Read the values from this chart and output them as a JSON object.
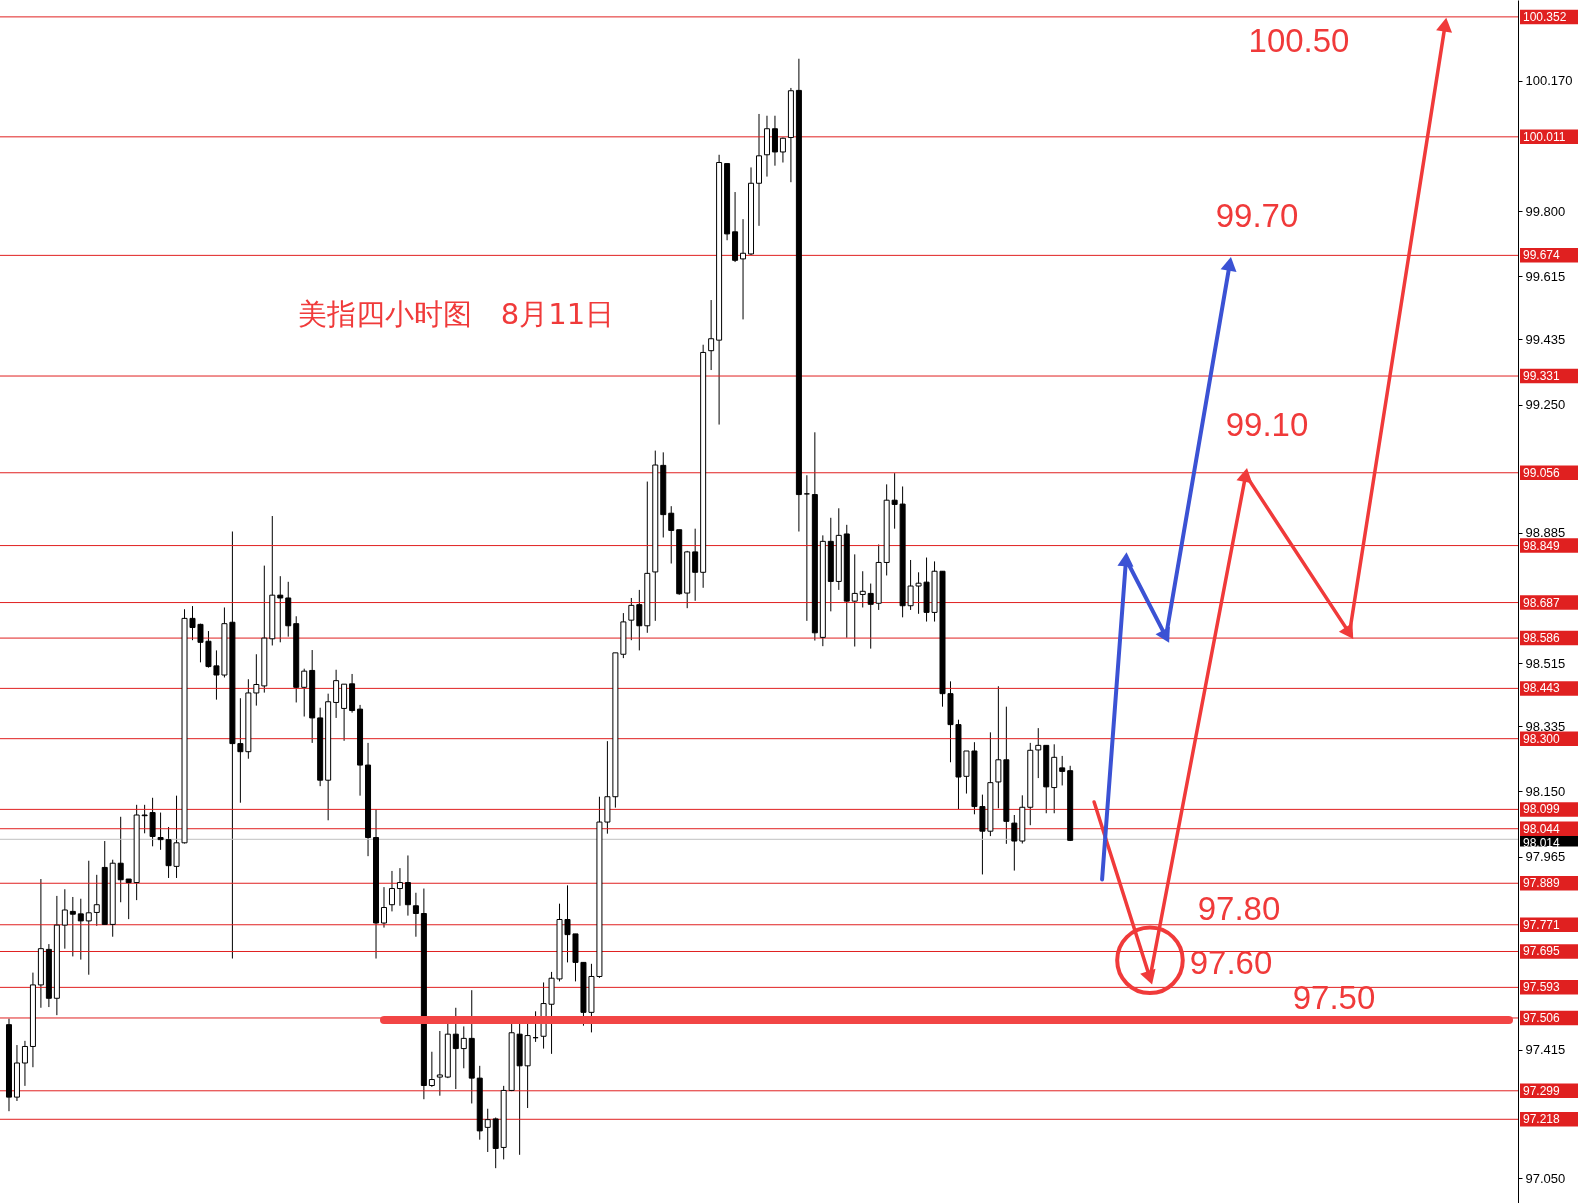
{
  "chart_data": {
    "type": "candlestick",
    "title": "美指四小时图　8月11日",
    "categories": [
      null,
      null,
      null,
      null,
      null,
      null,
      null,
      null,
      null,
      null,
      null,
      null,
      null,
      null,
      null,
      null,
      null,
      null,
      null,
      null,
      null,
      null,
      null,
      null,
      null,
      null,
      null,
      null,
      null,
      null,
      null,
      null,
      null,
      null,
      null,
      null,
      null,
      null,
      null,
      null,
      null,
      null,
      null,
      null,
      null,
      null,
      null,
      null,
      null,
      null,
      null,
      null,
      null,
      null,
      null,
      null,
      null,
      null,
      null,
      null,
      null,
      null,
      null,
      null,
      null,
      null,
      null,
      null,
      null,
      null,
      null,
      null,
      null,
      null,
      null,
      null,
      null,
      null,
      null,
      null,
      null,
      null,
      null,
      null,
      null,
      null,
      null,
      null,
      null,
      null,
      null,
      null,
      null,
      null,
      null,
      null,
      null,
      null,
      null,
      null,
      null,
      null,
      null,
      null,
      null,
      null,
      null,
      null,
      null,
      null,
      null,
      null,
      null,
      null,
      null,
      null,
      null,
      null,
      null,
      null,
      null,
      null,
      null,
      null,
      null,
      null,
      null,
      null,
      null,
      null,
      null,
      null,
      null,
      null,
      null,
      null,
      null,
      null,
      null,
      null,
      null,
      null,
      null,
      null,
      null,
      null,
      null,
      null,
      null,
      null,
      null,
      null,
      null,
      null,
      null,
      null,
      null,
      null,
      null,
      null,
      null,
      null,
      null,
      null,
      null,
      null,
      null,
      null,
      null,
      null,
      null,
      null,
      null,
      null,
      null,
      null,
      null,
      null,
      null,
      null,
      null,
      null,
      null,
      null,
      null,
      null,
      null,
      null,
      null
    ],
    "ohlc": [
      [
        97.487,
        97.504,
        97.241,
        97.281
      ],
      [
        97.281,
        97.429,
        97.27,
        97.378
      ],
      [
        97.378,
        97.441,
        97.313,
        97.425
      ],
      [
        97.425,
        97.635,
        97.366,
        97.6
      ],
      [
        97.6,
        97.901,
        97.535,
        97.703
      ],
      [
        97.701,
        97.716,
        97.537,
        97.562
      ],
      [
        97.562,
        97.853,
        97.514,
        97.77
      ],
      [
        97.77,
        97.872,
        97.703,
        97.813
      ],
      [
        97.809,
        97.85,
        97.681,
        97.801
      ],
      [
        97.802,
        97.845,
        97.672,
        97.782
      ],
      [
        97.782,
        97.953,
        97.629,
        97.805
      ],
      [
        97.806,
        97.913,
        97.768,
        97.828
      ],
      [
        97.934,
        98.009,
        97.772,
        97.772
      ],
      [
        97.772,
        97.956,
        97.737,
        97.946
      ],
      [
        97.946,
        98.078,
        97.835,
        97.899
      ],
      [
        97.901,
        97.901,
        97.787,
        97.891
      ],
      [
        97.891,
        98.112,
        97.841,
        98.083
      ],
      [
        98.083,
        98.112,
        98.031,
        98.081
      ],
      [
        98.09,
        98.132,
        97.994,
        98.022
      ],
      [
        98.019,
        98.09,
        97.984,
        98.013
      ],
      [
        98.013,
        98.049,
        97.904,
        97.939
      ],
      [
        97.937,
        98.138,
        97.904,
        98.004
      ],
      [
        98.004,
        98.668,
        98.002,
        98.642
      ],
      [
        98.642,
        98.677,
        98.58,
        98.616
      ],
      [
        98.625,
        98.627,
        98.517,
        98.574
      ],
      [
        98.577,
        98.606,
        98.502,
        98.505
      ],
      [
        98.507,
        98.551,
        98.411,
        98.481
      ],
      [
        98.481,
        98.673,
        98.474,
        98.627
      ],
      [
        98.631,
        98.889,
        97.675,
        98.286
      ],
      [
        98.286,
        98.415,
        98.118,
        98.263
      ],
      [
        98.263,
        98.469,
        98.243,
        98.43
      ],
      [
        98.43,
        98.54,
        98.394,
        98.454
      ],
      [
        98.45,
        98.792,
        98.431,
        98.586
      ],
      [
        98.584,
        98.933,
        98.565,
        98.708
      ],
      [
        98.708,
        98.762,
        98.574,
        98.7
      ],
      [
        98.7,
        98.746,
        98.59,
        98.621
      ],
      [
        98.627,
        98.648,
        98.403,
        98.446
      ],
      [
        98.446,
        98.499,
        98.363,
        98.492
      ],
      [
        98.494,
        98.552,
        98.288,
        98.359
      ],
      [
        98.359,
        98.388,
        98.165,
        98.182
      ],
      [
        98.182,
        98.428,
        98.068,
        98.405
      ],
      [
        98.403,
        98.496,
        98.359,
        98.465
      ],
      [
        98.386,
        98.455,
        98.294,
        98.455
      ],
      [
        98.456,
        98.484,
        98.374,
        98.38
      ],
      [
        98.384,
        98.396,
        98.138,
        98.225
      ],
      [
        98.225,
        98.288,
        97.966,
        98.019
      ],
      [
        98.019,
        98.099,
        97.675,
        97.776
      ],
      [
        97.776,
        97.878,
        97.763,
        97.82
      ],
      [
        97.828,
        97.924,
        97.809,
        97.874
      ],
      [
        97.874,
        97.932,
        97.825,
        97.891
      ],
      [
        97.891,
        97.968,
        97.797,
        97.828
      ],
      [
        97.825,
        97.862,
        97.737,
        97.803
      ],
      [
        97.803,
        97.874,
        97.275,
        97.314
      ],
      [
        97.314,
        97.41,
        97.31,
        97.331
      ],
      [
        97.338,
        97.469,
        97.285,
        97.344
      ],
      [
        97.338,
        97.497,
        97.335,
        97.46
      ],
      [
        97.46,
        97.535,
        97.304,
        97.419
      ],
      [
        97.419,
        97.482,
        97.363,
        97.448
      ],
      [
        97.448,
        97.585,
        97.263,
        97.335
      ],
      [
        97.335,
        97.37,
        97.16,
        97.185
      ],
      [
        97.195,
        97.248,
        97.125,
        97.217
      ],
      [
        97.219,
        97.223,
        97.079,
        97.135
      ],
      [
        97.138,
        97.313,
        97.104,
        97.3
      ],
      [
        97.3,
        97.494,
        97.298,
        97.464
      ],
      [
        97.46,
        97.497,
        97.117,
        97.37
      ],
      [
        97.37,
        97.494,
        97.25,
        97.456
      ],
      [
        97.45,
        97.525,
        97.438,
        97.45
      ],
      [
        97.454,
        97.607,
        97.419,
        97.547
      ],
      [
        97.545,
        97.637,
        97.404,
        97.619
      ],
      [
        97.617,
        97.831,
        97.61,
        97.786
      ],
      [
        97.786,
        97.883,
        97.664,
        97.743
      ],
      [
        97.745,
        97.745,
        97.61,
        97.664
      ],
      [
        97.664,
        97.664,
        97.484,
        97.522
      ],
      [
        97.522,
        97.66,
        97.465,
        97.624
      ],
      [
        97.624,
        98.135,
        97.62,
        98.063
      ],
      [
        98.063,
        98.293,
        98.03,
        98.135
      ],
      [
        98.135,
        98.544,
        98.104,
        98.544
      ],
      [
        98.54,
        98.657,
        98.529,
        98.632
      ],
      [
        98.637,
        98.7,
        98.58,
        98.679
      ],
      [
        98.681,
        98.723,
        98.551,
        98.621
      ],
      [
        98.621,
        99.031,
        98.601,
        98.77
      ],
      [
        98.774,
        99.119,
        98.635,
        99.078
      ],
      [
        99.077,
        99.114,
        98.872,
        98.937
      ],
      [
        98.941,
        98.961,
        98.798,
        98.892
      ],
      [
        98.894,
        98.894,
        98.709,
        98.712
      ],
      [
        98.714,
        98.834,
        98.671,
        98.831
      ],
      [
        98.831,
        98.897,
        98.692,
        98.773
      ],
      [
        98.773,
        99.42,
        98.729,
        99.398
      ],
      [
        99.403,
        99.547,
        99.348,
        99.437
      ],
      [
        99.433,
        99.96,
        99.193,
        99.938
      ],
      [
        99.935,
        99.935,
        99.717,
        99.735
      ],
      [
        99.741,
        99.854,
        99.655,
        99.66
      ],
      [
        99.664,
        99.777,
        99.492,
        99.68
      ],
      [
        99.678,
        99.924,
        99.675,
        99.879
      ],
      [
        99.879,
        100.076,
        99.758,
        99.957
      ],
      [
        99.96,
        100.071,
        99.898,
        100.034
      ],
      [
        100.034,
        100.071,
        99.929,
        99.968
      ],
      [
        99.968,
        100.009,
        99.938,
        100.007
      ],
      [
        100.009,
        100.15,
        99.882,
        100.142
      ],
      [
        100.143,
        100.233,
        98.889,
        98.994
      ],
      [
        98.996,
        99.049,
        98.635,
        98.996
      ],
      [
        98.994,
        99.171,
        98.579,
        98.601
      ],
      [
        98.588,
        98.878,
        98.563,
        98.861
      ],
      [
        98.861,
        98.928,
        98.662,
        98.747
      ],
      [
        98.747,
        98.955,
        98.723,
        98.878
      ],
      [
        98.882,
        98.908,
        98.587,
        98.691
      ],
      [
        98.691,
        98.824,
        98.562,
        98.713
      ],
      [
        98.71,
        98.776,
        98.673,
        98.719
      ],
      [
        98.713,
        98.741,
        98.556,
        98.682
      ],
      [
        98.685,
        98.852,
        98.666,
        98.801
      ],
      [
        98.801,
        99.023,
        98.764,
        98.978
      ],
      [
        98.978,
        99.055,
        98.897,
        98.966
      ],
      [
        98.967,
        99.017,
        98.645,
        98.678
      ],
      [
        98.678,
        98.808,
        98.666,
        98.734
      ],
      [
        98.734,
        98.773,
        98.655,
        98.742
      ],
      [
        98.745,
        98.815,
        98.633,
        98.659
      ],
      [
        98.659,
        98.804,
        98.633,
        98.776
      ],
      [
        98.776,
        98.776,
        98.391,
        98.428
      ],
      [
        98.428,
        98.463,
        98.233,
        98.34
      ],
      [
        98.34,
        98.354,
        98.1,
        98.191
      ],
      [
        98.193,
        98.265,
        98.144,
        98.265
      ],
      [
        98.265,
        98.29,
        98.085,
        98.107
      ],
      [
        98.107,
        98.141,
        97.914,
        98.037
      ],
      [
        98.037,
        98.318,
        98.023,
        98.175
      ],
      [
        98.177,
        98.449,
        98.102,
        98.24
      ],
      [
        98.24,
        98.391,
        98.001,
        98.065
      ],
      [
        98.06,
        98.083,
        97.925,
        98.009
      ],
      [
        98.009,
        98.139,
        98.002,
        98.105
      ],
      [
        98.105,
        98.288,
        98.054,
        98.267
      ],
      [
        98.268,
        98.33,
        98.188,
        98.281
      ],
      [
        98.281,
        98.281,
        98.088,
        98.163
      ],
      [
        98.161,
        98.284,
        98.088,
        98.247
      ],
      [
        98.217,
        98.251,
        98.167,
        98.207
      ],
      [
        98.209,
        98.223,
        98.009,
        98.011
      ],
      null,
      null,
      null,
      null,
      null,
      null,
      null,
      null,
      null,
      null,
      null,
      null,
      null,
      null,
      null,
      null,
      null,
      null,
      null,
      null,
      null,
      null,
      null,
      null,
      null,
      null,
      null,
      null,
      null,
      null,
      null,
      null,
      null,
      null,
      null,
      null,
      null,
      null,
      null,
      null,
      null,
      null,
      null,
      null,
      null,
      null,
      null,
      null,
      null,
      null,
      null,
      null,
      null,
      null,
      null
    ],
    "series": [
      {
        "type": "line",
        "color": "#3b52d4",
        "marker": "triangle",
        "values": [
          null,
          null,
          null,
          null,
          null,
          null,
          null,
          null,
          null,
          null,
          null,
          null,
          null,
          null,
          null,
          null,
          null,
          null,
          null,
          null,
          null,
          null,
          null,
          null,
          null,
          null,
          null,
          null,
          null,
          null,
          null,
          null,
          null,
          null,
          null,
          null,
          null,
          null,
          null,
          null,
          null,
          null,
          null,
          null,
          null,
          null,
          null,
          null,
          null,
          null,
          null,
          null,
          null,
          null,
          null,
          null,
          null,
          null,
          null,
          null,
          null,
          null,
          null,
          null,
          null,
          null,
          null,
          null,
          null,
          null,
          null,
          null,
          null,
          null,
          null,
          null,
          null,
          null,
          null,
          null,
          null,
          null,
          null,
          null,
          null,
          null,
          null,
          null,
          null,
          null,
          null,
          null,
          null,
          null,
          null,
          null,
          null,
          null,
          null,
          null,
          null,
          null,
          null,
          null,
          null,
          null,
          null,
          null,
          null,
          null,
          null,
          null,
          null,
          null,
          null,
          null,
          null,
          null,
          null,
          null,
          null,
          null,
          null,
          null,
          null,
          null,
          null,
          null,
          null,
          null,
          null,
          null,
          null,
          null,
          null,
          null,
          null,
          97.9,
          null,
          null,
          98.81,
          null,
          null,
          null,
          null,
          98.59,
          null,
          null,
          null,
          null,
          null,
          null,
          null,
          99.65,
          null,
          null,
          null,
          null,
          null,
          null,
          null,
          null,
          null,
          null,
          null,
          null,
          null,
          null,
          null,
          null,
          null,
          null,
          null,
          null,
          null,
          null,
          null,
          null,
          null,
          null,
          null,
          null,
          null,
          null,
          null,
          null,
          null,
          null,
          null
        ]
      },
      {
        "type": "line",
        "color": "#f03a3a",
        "marker": "triangle",
        "values": [
          null,
          null,
          null,
          null,
          null,
          null,
          null,
          null,
          null,
          null,
          null,
          null,
          null,
          null,
          null,
          null,
          null,
          null,
          null,
          null,
          null,
          null,
          null,
          null,
          null,
          null,
          null,
          null,
          null,
          null,
          null,
          null,
          null,
          null,
          null,
          null,
          null,
          null,
          null,
          null,
          null,
          null,
          null,
          null,
          null,
          null,
          null,
          null,
          null,
          null,
          null,
          null,
          null,
          null,
          null,
          null,
          null,
          null,
          null,
          null,
          null,
          null,
          null,
          null,
          null,
          null,
          null,
          null,
          null,
          null,
          null,
          null,
          null,
          null,
          null,
          null,
          null,
          null,
          null,
          null,
          null,
          null,
          null,
          null,
          null,
          null,
          null,
          null,
          null,
          null,
          null,
          null,
          null,
          null,
          null,
          null,
          null,
          null,
          null,
          null,
          null,
          null,
          null,
          null,
          null,
          null,
          null,
          null,
          null,
          null,
          null,
          null,
          null,
          null,
          null,
          null,
          null,
          null,
          null,
          null,
          null,
          null,
          null,
          null,
          null,
          null,
          null,
          null,
          null,
          null,
          null,
          null,
          null,
          null,
          null,
          null,
          98.12,
          null,
          null,
          null,
          null,
          null,
          null,
          97.62,
          null,
          null,
          null,
          null,
          null,
          null,
          null,
          null,
          null,
          null,
          null,
          99.05,
          null,
          null,
          null,
          null,
          null,
          null,
          null,
          null,
          null,
          null,
          null,
          null,
          98.6,
          null,
          null,
          null,
          null,
          null,
          null,
          null,
          null,
          null,
          null,
          null,
          100.33,
          null,
          null,
          null,
          null,
          null,
          null,
          null,
          null
        ]
      },
      {
        "type": "line",
        "color": "#f24545",
        "values": [
          null,
          null,
          null,
          null,
          null,
          null,
          null,
          null,
          null,
          null,
          null,
          null,
          null,
          null,
          null,
          null,
          null,
          null,
          null,
          null,
          null,
          null,
          null,
          null,
          null,
          null,
          null,
          null,
          null,
          null,
          null,
          null,
          null,
          null,
          null,
          null,
          null,
          null,
          null,
          null,
          null,
          null,
          null,
          null,
          null,
          null,
          null,
          97.5,
          null,
          null,
          null,
          null,
          null,
          null,
          null,
          null,
          null,
          null,
          null,
          null,
          null,
          null,
          null,
          null,
          null,
          null,
          null,
          null,
          null,
          null,
          null,
          null,
          null,
          null,
          null,
          null,
          null,
          null,
          null,
          null,
          null,
          null,
          null,
          null,
          null,
          null,
          null,
          null,
          null,
          null,
          null,
          null,
          null,
          null,
          null,
          null,
          null,
          null,
          null,
          null,
          null,
          null,
          null,
          null,
          null,
          null,
          null,
          null,
          null,
          null,
          null,
          null,
          null,
          null,
          null,
          null,
          null,
          null,
          null,
          null,
          null,
          null,
          null,
          null,
          null,
          null,
          null,
          null,
          null,
          null,
          null,
          null,
          null,
          null,
          null,
          null,
          null,
          null,
          null,
          null,
          null,
          null,
          null,
          null,
          null,
          null,
          null,
          null,
          null,
          null,
          null,
          null,
          null,
          null,
          null,
          null,
          null,
          null,
          null,
          null,
          null,
          null,
          null,
          null,
          null,
          null,
          null,
          null,
          null,
          null,
          null,
          null,
          null,
          null,
          null,
          null,
          null,
          null,
          null,
          null,
          null,
          null,
          null,
          null,
          null,
          null,
          null,
          null,
          97.5
        ]
      },
      {
        "type": "scatter",
        "color": "#f03a3a",
        "marker": "circle",
        "values": [
          null,
          null,
          null,
          null,
          null,
          null,
          null,
          null,
          null,
          null,
          null,
          null,
          null,
          null,
          null,
          null,
          null,
          null,
          null,
          null,
          null,
          null,
          null,
          null,
          null,
          null,
          null,
          null,
          null,
          null,
          null,
          null,
          null,
          null,
          null,
          null,
          null,
          null,
          null,
          null,
          null,
          null,
          null,
          null,
          null,
          null,
          null,
          null,
          null,
          null,
          null,
          null,
          null,
          null,
          null,
          null,
          null,
          null,
          null,
          null,
          null,
          null,
          null,
          null,
          null,
          null,
          null,
          null,
          null,
          null,
          null,
          null,
          null,
          null,
          null,
          null,
          null,
          null,
          null,
          null,
          null,
          null,
          null,
          null,
          null,
          null,
          null,
          null,
          null,
          null,
          null,
          null,
          null,
          null,
          null,
          null,
          null,
          null,
          null,
          null,
          null,
          null,
          null,
          null,
          null,
          null,
          null,
          null,
          null,
          null,
          null,
          null,
          null,
          null,
          null,
          null,
          null,
          null,
          null,
          null,
          null,
          null,
          null,
          null,
          null,
          null,
          null,
          null,
          null,
          null,
          null,
          null,
          null,
          null,
          null,
          null,
          null,
          null,
          null,
          null,
          null,
          null,
          null,
          97.67,
          null,
          null,
          null,
          null,
          null,
          null,
          null,
          null,
          null,
          null,
          null,
          null,
          null,
          null,
          null,
          null,
          null,
          null,
          null,
          null,
          null,
          null,
          null,
          null,
          null,
          null,
          null,
          null,
          null,
          null,
          null,
          null,
          null,
          null,
          null,
          null,
          null,
          null,
          null,
          null,
          null,
          null,
          null,
          null,
          null
        ]
      }
    ],
    "ylim": [
      96.98,
      100.4
    ],
    "yticks": [
      {
        "value": 100.17,
        "label": "100.170"
      },
      {
        "value": 99.8,
        "label": "99.800"
      },
      {
        "value": 99.615,
        "label": "99.615"
      },
      {
        "value": 99.435,
        "label": "99.435"
      },
      {
        "value": 99.25,
        "label": "99.250"
      },
      {
        "value": 98.885,
        "label": "98.885"
      },
      {
        "value": 98.515,
        "label": "98.515"
      },
      {
        "value": 98.335,
        "label": "98.335"
      },
      {
        "value": 98.15,
        "label": "98.150"
      },
      {
        "value": 97.965,
        "label": "97.965"
      },
      {
        "value": 97.415,
        "label": "97.415"
      },
      {
        "value": 97.05,
        "label": "97.050"
      }
    ],
    "ref_lines": [
      {
        "axis": "y",
        "value": 100.352,
        "label": "100.352",
        "color": "#e02020"
      },
      {
        "axis": "y",
        "value": 100.011,
        "label": "100.011",
        "color": "#e02020"
      },
      {
        "axis": "y",
        "value": 99.674,
        "label": "99.674",
        "color": "#e02020"
      },
      {
        "axis": "y",
        "value": 99.331,
        "label": "99.331",
        "color": "#e02020"
      },
      {
        "axis": "y",
        "value": 99.056,
        "label": "99.056",
        "color": "#e02020"
      },
      {
        "axis": "y",
        "value": 98.849,
        "label": "98.849",
        "color": "#e02020"
      },
      {
        "axis": "y",
        "value": 98.687,
        "label": "98.687",
        "color": "#e02020"
      },
      {
        "axis": "y",
        "value": 98.586,
        "label": "98.586",
        "color": "#e02020"
      },
      {
        "axis": "y",
        "value": 98.443,
        "label": "98.443",
        "color": "#e02020"
      },
      {
        "axis": "y",
        "value": 98.3,
        "label": "98.300",
        "color": "#e02020"
      },
      {
        "axis": "y",
        "value": 98.099,
        "label": "98.099",
        "color": "#e02020"
      },
      {
        "axis": "y",
        "value": 98.044,
        "label": "98.044",
        "color": "#e02020"
      },
      {
        "axis": "y",
        "value": 98.014,
        "label": "98.014",
        "color": "#c0c0c0"
      },
      {
        "axis": "y",
        "value": 97.889,
        "label": "97.889",
        "color": "#e02020"
      },
      {
        "axis": "y",
        "value": 97.771,
        "label": "97.771",
        "color": "#e02020"
      },
      {
        "axis": "y",
        "value": 97.695,
        "label": "97.695",
        "color": "#e02020"
      },
      {
        "axis": "y",
        "value": 97.593,
        "label": "97.593",
        "color": "#e02020"
      },
      {
        "axis": "y",
        "value": 97.506,
        "label": "97.506",
        "color": "#e02020"
      },
      {
        "axis": "y",
        "value": 97.299,
        "label": "97.299",
        "color": "#e02020"
      },
      {
        "axis": "y",
        "value": 97.218,
        "label": "97.218",
        "color": "#e02020"
      }
    ],
    "annotations": [
      "100.50",
      "99.70",
      "99.10",
      "97.80",
      "97.60",
      "97.50"
    ],
    "grid": false,
    "tick_labels": "y"
  }
}
